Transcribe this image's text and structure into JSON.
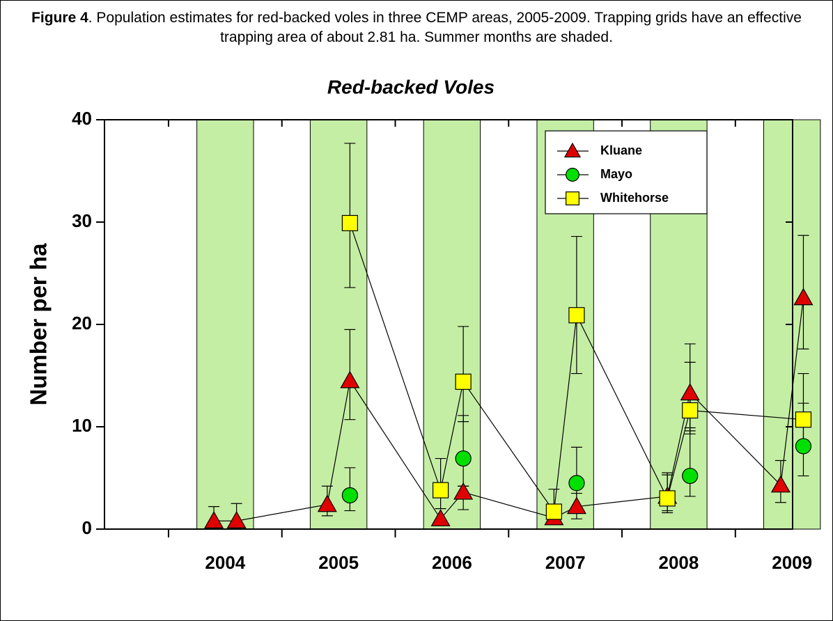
{
  "caption": {
    "label": "Figure 4",
    "text": ".  Population estimates for red-backed voles in three CEMP areas, 2005-2009. Trapping grids have an effective trapping area of about 2.81 ha. Summer months are shaded."
  },
  "chart_data": {
    "type": "line",
    "title": "Red-backed Voles",
    "y_label": "Number per ha",
    "xlim": [
      2003.435,
      2009.505
    ],
    "xticks": [
      2004,
      2005,
      2006,
      2007,
      2008,
      2009
    ],
    "ylim": [
      0,
      40
    ],
    "yticks": [
      0,
      10,
      20,
      30,
      40
    ],
    "shade_color": "#c5eea5",
    "shaded": [
      [
        2004.25,
        2004.75
      ],
      [
        2005.25,
        2005.75
      ],
      [
        2006.25,
        2006.75
      ],
      [
        2007.25,
        2007.75
      ],
      [
        2008.25,
        2008.75
      ],
      [
        2009.25,
        2009.75
      ]
    ],
    "legend": "upper right",
    "series": [
      {
        "name": "Kluane",
        "color": "#e00000",
        "marker": "triangle",
        "line": true,
        "x": [
          2004.4,
          2004.6,
          2005.4,
          2005.6,
          2006.4,
          2006.6,
          2007.4,
          2007.6,
          2008.4,
          2008.6,
          2009.4,
          2009.6
        ],
        "values": [
          0.8,
          0.8,
          2.4,
          14.5,
          1.0,
          3.6,
          1.1,
          2.2,
          3.2,
          13.3,
          4.3,
          22.6
        ],
        "ci_high": [
          2.2,
          2.5,
          4.2,
          19.5,
          null,
          4.2,
          null,
          3.5,
          5.3,
          18.1,
          6.7,
          28.7
        ],
        "ci_low": [
          null,
          null,
          1.3,
          10.7,
          null,
          1.9,
          null,
          1.0,
          1.8,
          9.6,
          2.6,
          17.6
        ]
      },
      {
        "name": "Mayo",
        "color": "#00e000",
        "marker": "circle",
        "line": false,
        "x": [
          2005.6,
          2006.6,
          2007.6,
          2008.6,
          2009.6
        ],
        "values": [
          3.3,
          6.9,
          4.5,
          5.2,
          8.1
        ],
        "ci_high": [
          6.0,
          11.1,
          8.0,
          9.9,
          15.2
        ],
        "ci_low": [
          1.8,
          4.2,
          1.6,
          3.2,
          5.2
        ]
      },
      {
        "name": "Whitehorse",
        "color": "#ffff00",
        "marker": "square",
        "line": true,
        "x": [
          2005.6,
          2006.4,
          2006.6,
          2007.4,
          2007.6,
          2008.4,
          2008.6,
          2009.6
        ],
        "values": [
          29.9,
          3.8,
          14.4,
          1.7,
          20.9,
          3.0,
          11.6,
          10.7
        ],
        "ci_high": [
          37.7,
          6.9,
          19.8,
          3.9,
          28.6,
          5.5,
          16.3,
          12.3
        ],
        "ci_low": [
          23.6,
          2.0,
          10.5,
          null,
          15.2,
          1.6,
          9.3,
          7.6
        ]
      }
    ]
  }
}
